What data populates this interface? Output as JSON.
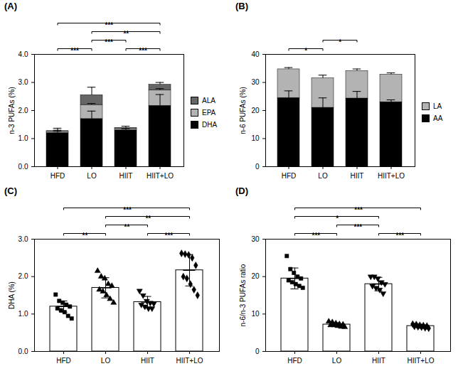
{
  "chart_data": [
    {
      "type": "bar",
      "title": "(A)",
      "y_label": "n-3 PUFAs (%)",
      "stacked": true,
      "categories": [
        "HFD",
        "LO",
        "HIIT",
        "HIIT+LO"
      ],
      "series": [
        {
          "name": "DHA",
          "color": "#000000",
          "values": [
            1.2,
            1.7,
            1.3,
            2.17
          ],
          "errors": [
            0.1,
            0.28,
            0.06,
            0.4
          ]
        },
        {
          "name": "EPA",
          "color": "#b3b3b3",
          "values": [
            0.05,
            0.5,
            0.05,
            0.55
          ],
          "errors": [
            0.01,
            0.05,
            0.01,
            0.06
          ]
        },
        {
          "name": "ALA",
          "color": "#666666",
          "values": [
            0.02,
            0.35,
            0.03,
            0.2
          ],
          "errors": [
            0.1,
            0.28,
            0.06,
            0.08
          ]
        }
      ],
      "ylim": [
        0,
        4
      ],
      "yticks": [
        0,
        1,
        2,
        3,
        4
      ],
      "annotations": [
        {
          "from": "HFD",
          "to": "LO",
          "text": "***"
        },
        {
          "from": "LO",
          "to": "HIIT",
          "text": "***"
        },
        {
          "from": "HIIT",
          "to": "HIIT+LO",
          "text": "***"
        },
        {
          "from": "LO",
          "to": "HIIT+LO",
          "text": "**"
        },
        {
          "from": "HFD",
          "to": "HIIT+LO",
          "text": "***"
        }
      ]
    },
    {
      "type": "bar",
      "title": "(B)",
      "y_label": "n-6 PUFAs (%)",
      "stacked": true,
      "categories": [
        "HFD",
        "LO",
        "HIIT",
        "HIIT+LO"
      ],
      "series": [
        {
          "name": "AA",
          "color": "#000000",
          "values": [
            24.5,
            21,
            24.3,
            23
          ],
          "errors": [
            2.5,
            3.5,
            2.5,
            0.8
          ]
        },
        {
          "name": "LA",
          "color": "#b3b3b3",
          "values": [
            10.2,
            10.5,
            9.8,
            9.8
          ],
          "errors": [
            0.6,
            1.1,
            0.7,
            0.6
          ]
        }
      ],
      "ylim": [
        0,
        40
      ],
      "yticks": [
        0,
        10,
        20,
        30,
        40
      ],
      "annotations": [
        {
          "from": "HFD",
          "to": "LO",
          "text": "*"
        },
        {
          "from": "LO",
          "to": "HIIT",
          "text": "*"
        }
      ]
    },
    {
      "type": "bar",
      "title": "(C)",
      "y_label": "DHA (%)",
      "color": "#ffffff",
      "categories": [
        "HFD",
        "LO",
        "HIIT",
        "HIIT+LO"
      ],
      "values": [
        1.2,
        1.7,
        1.32,
        2.17
      ],
      "errors": [
        0.15,
        0.27,
        0.15,
        0.42
      ],
      "points": [
        {
          "marker": "square",
          "values": [
            1.52,
            1.35,
            1.3,
            1.25,
            1.2,
            1.15,
            1.1,
            1.05,
            0.95,
            0.88
          ]
        },
        {
          "marker": "triangle-up",
          "values": [
            2.15,
            2.0,
            1.95,
            1.8,
            1.75,
            1.65,
            1.6,
            1.5,
            1.4,
            1.3
          ]
        },
        {
          "marker": "triangle-down",
          "values": [
            1.62,
            1.5,
            1.35,
            1.3,
            1.28,
            1.25,
            1.2,
            1.15,
            1.15
          ]
        },
        {
          "marker": "diamond",
          "values": [
            2.62,
            2.6,
            2.58,
            2.5,
            2.3,
            2.0,
            1.95,
            1.8,
            1.65,
            1.5
          ]
        }
      ],
      "ylim": [
        0,
        3
      ],
      "yticks": [
        0,
        1,
        2,
        3
      ],
      "annotations": [
        {
          "from": "HFD",
          "to": "LO",
          "text": "**"
        },
        {
          "from": "LO",
          "to": "HIIT",
          "text": "**"
        },
        {
          "from": "HIIT",
          "to": "HIIT+LO",
          "text": "***"
        },
        {
          "from": "LO",
          "to": "HIIT+LO",
          "text": "**"
        },
        {
          "from": "HFD",
          "to": "HIIT+LO",
          "text": "***"
        }
      ]
    },
    {
      "type": "bar",
      "title": "(D)",
      "y_label": "n-6/n-3 PUFAs ratio",
      "color": "#ffffff",
      "categories": [
        "HFD",
        "LO",
        "HIIT",
        "HIIT+LO"
      ],
      "values": [
        19.5,
        7.2,
        18,
        6.8
      ],
      "errors": [
        2.8,
        0.5,
        1.8,
        0.4
      ],
      "points": [
        {
          "marker": "square",
          "values": [
            25.5,
            22,
            21,
            20,
            19.5,
            19,
            18.5,
            18,
            17.5,
            17
          ]
        },
        {
          "marker": "triangle-up",
          "values": [
            8,
            7.8,
            7.5,
            7.3,
            7.2,
            7,
            7,
            6.8,
            6.6,
            6.5
          ]
        },
        {
          "marker": "triangle-down",
          "values": [
            20,
            20,
            19.5,
            18.5,
            18,
            17.5,
            17,
            16.5,
            15.5
          ]
        },
        {
          "marker": "diamond",
          "values": [
            7.3,
            7.2,
            7,
            6.9,
            6.8,
            6.7,
            6.6,
            6.5,
            6.3,
            6.2
          ]
        }
      ],
      "ylim": [
        0,
        30
      ],
      "yticks": [
        0,
        10,
        20,
        30
      ],
      "annotations": [
        {
          "from": "HFD",
          "to": "LO",
          "text": "***"
        },
        {
          "from": "LO",
          "to": "HIIT",
          "text": "***"
        },
        {
          "from": "HIIT",
          "to": "HIIT+LO",
          "text": "***"
        },
        {
          "from": "HFD",
          "to": "HIIT",
          "text": "*"
        },
        {
          "from": "HFD",
          "to": "HIIT+LO",
          "text": "***"
        }
      ]
    }
  ]
}
